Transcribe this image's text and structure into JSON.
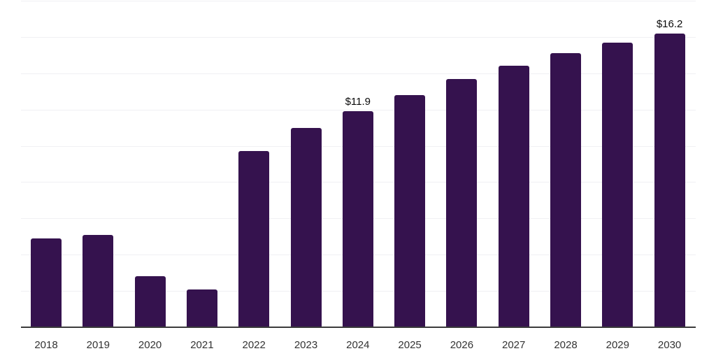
{
  "chart_data": {
    "type": "bar",
    "title": "",
    "xlabel": "",
    "ylabel": "",
    "categories": [
      "2018",
      "2019",
      "2020",
      "2021",
      "2022",
      "2023",
      "2024",
      "2025",
      "2026",
      "2027",
      "2028",
      "2029",
      "2030"
    ],
    "values": [
      4.9,
      5.1,
      2.8,
      2.1,
      9.7,
      11.0,
      11.9,
      12.8,
      13.7,
      14.4,
      15.1,
      15.7,
      16.2
    ],
    "bar_labels": [
      "",
      "",
      "",
      "",
      "",
      "",
      "$11.9",
      "",
      "",
      "",
      "",
      "",
      "$16.2"
    ],
    "ylim": [
      0,
      18
    ],
    "gridline_step": 2,
    "grid": "horizontal-only",
    "y_tick_labels_visible": false,
    "legend": "none",
    "colors": {
      "bar_fill": "#35124E",
      "gridline": "#f0f0f3",
      "axis_line": "#3b3b3b",
      "x_label_text": "#333333",
      "value_label_text": "#0a0a0a",
      "background": "#ffffff"
    }
  }
}
